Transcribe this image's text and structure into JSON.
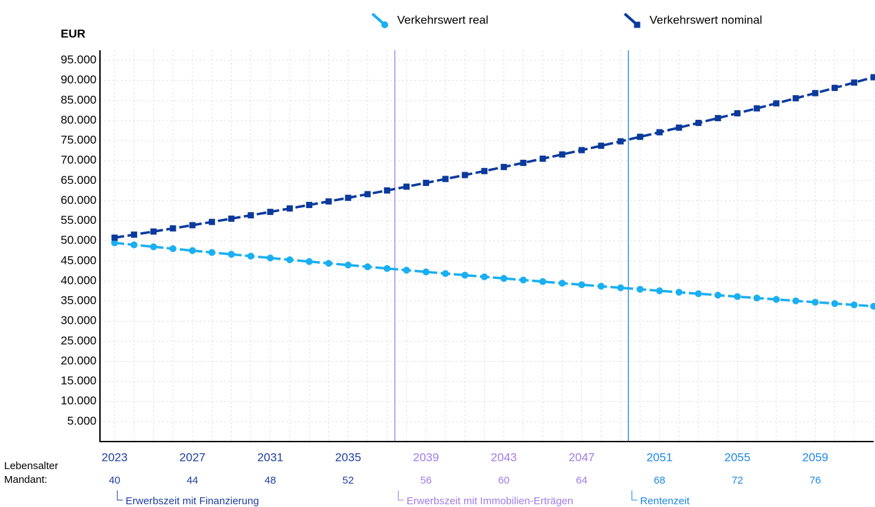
{
  "chart_data": {
    "type": "line",
    "y_axis_label": "EUR",
    "x": [
      2023,
      2024,
      2025,
      2026,
      2027,
      2028,
      2029,
      2030,
      2031,
      2032,
      2033,
      2034,
      2035,
      2036,
      2037,
      2038,
      2039,
      2040,
      2041,
      2042,
      2043,
      2044,
      2045,
      2046,
      2047,
      2048,
      2049,
      2050,
      2051,
      2052,
      2053,
      2054,
      2055,
      2056,
      2057,
      2058,
      2059,
      2060,
      2061,
      2062
    ],
    "series": [
      {
        "name": "Verkehrswert real",
        "color": "#1aaff0",
        "marker": "circle",
        "values": [
          49500,
          49015,
          48535,
          48059,
          47588,
          47122,
          46660,
          46203,
          45750,
          45302,
          44858,
          44418,
          43983,
          43552,
          43125,
          42703,
          42284,
          41870,
          41460,
          41053,
          40651,
          40253,
          39858,
          39468,
          39081,
          38698,
          38319,
          37943,
          37571,
          37203,
          36839,
          36478,
          36120,
          35766,
          35416,
          35069,
          34725,
          34385,
          34048,
          33714
        ]
      },
      {
        "name": "Verkehrswert nominal",
        "color": "#0b3a9c",
        "marker": "square",
        "values": [
          50800,
          51562,
          52335,
          53120,
          53917,
          54726,
          55547,
          56380,
          57226,
          58084,
          58955,
          59840,
          60737,
          61648,
          62573,
          63512,
          64464,
          65431,
          66413,
          67409,
          68420,
          69447,
          70488,
          71546,
          72619,
          73708,
          74814,
          75936,
          77075,
          78231,
          79405,
          80596,
          81804,
          83032,
          84277,
          85541,
          86824,
          88127,
          89449,
          90790
        ]
      }
    ],
    "xlim": [
      2022.25,
      2062
    ],
    "xticks": [
      2023,
      2027,
      2031,
      2035,
      2039,
      2043,
      2047,
      2051,
      2055,
      2059
    ],
    "age_row_label": [
      "Lebensalter",
      "Mandant:"
    ],
    "age_labels": [
      40,
      44,
      48,
      52,
      56,
      60,
      64,
      68,
      72,
      76
    ],
    "ylim": [
      0,
      97500
    ],
    "yticks": [
      {
        "value": 5000,
        "label": "5.000"
      },
      {
        "value": 10000,
        "label": "10.000"
      },
      {
        "value": 15000,
        "label": "15.000"
      },
      {
        "value": 20000,
        "label": "20.000"
      },
      {
        "value": 25000,
        "label": "25.000"
      },
      {
        "value": 30000,
        "label": "30.000"
      },
      {
        "value": 35000,
        "label": "35.000"
      },
      {
        "value": 40000,
        "label": "40.000"
      },
      {
        "value": 45000,
        "label": "45.000"
      },
      {
        "value": 50000,
        "label": "50.000"
      },
      {
        "value": 55000,
        "label": "55.000"
      },
      {
        "value": 60000,
        "label": "60.000"
      },
      {
        "value": 65000,
        "label": "65.000"
      },
      {
        "value": 70000,
        "label": "70.000"
      },
      {
        "value": 75000,
        "label": "75.000"
      },
      {
        "value": 80000,
        "label": "80.000"
      },
      {
        "value": 85000,
        "label": "85.000"
      },
      {
        "value": 90000,
        "label": "90.000"
      },
      {
        "value": 95000,
        "label": "95.000"
      }
    ],
    "grid": true,
    "legend_position": "top",
    "phases": [
      {
        "label": "Erwerbszeit mit Finanzierung",
        "start": 2023,
        "color": "#1f3f9e",
        "line": false
      },
      {
        "label": "Erwerbszeit mit Immobilien-Erträgen",
        "start": 2037.4,
        "color": "#a07de6",
        "line": true
      },
      {
        "label": "Rentenzeit",
        "start": 2049.4,
        "color": "#1e88e5",
        "line": true
      }
    ]
  }
}
